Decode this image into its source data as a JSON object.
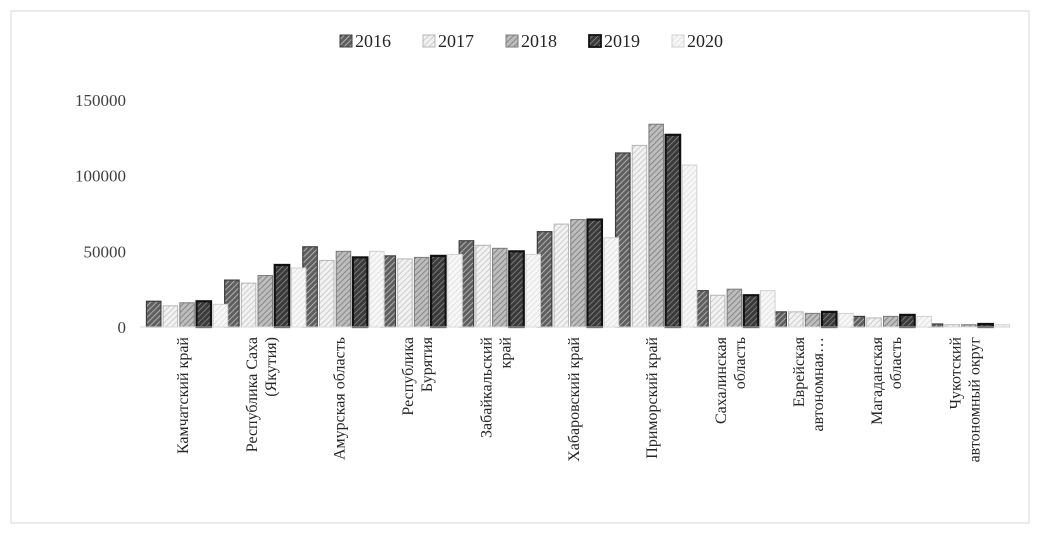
{
  "chart_data": {
    "type": "bar",
    "title": "",
    "xlabel": "",
    "ylabel": "",
    "ylim": [
      0,
      150000
    ],
    "yticks": [
      0,
      50000,
      100000,
      150000
    ],
    "grid": false,
    "legend_position": "top-center",
    "categories": [
      [
        "Камчатский край"
      ],
      [
        "Республика Саха",
        "(Якутия)"
      ],
      [
        "Амурская  область"
      ],
      [
        "Республика",
        "Бурятия"
      ],
      [
        "Забайкальский",
        "край"
      ],
      [
        "Хабаровский край"
      ],
      [
        "Приморский край"
      ],
      [
        "Сахалинская",
        "область"
      ],
      [
        "Еврейская",
        "автономная…"
      ],
      [
        "Магаданская",
        "область"
      ],
      [
        "Чукотский",
        "автономный округ"
      ]
    ],
    "series": [
      {
        "name": "2016",
        "color": "#7f7f7f",
        "values": [
          17000,
          31000,
          53000,
          47000,
          57000,
          63000,
          115000,
          24000,
          10000,
          7000,
          2000
        ]
      },
      {
        "name": "2017",
        "color": "#cfcfcf",
        "values": [
          14000,
          29000,
          44000,
          45000,
          54000,
          68000,
          120000,
          21000,
          10000,
          6000,
          1500
        ]
      },
      {
        "name": "2018",
        "color": "#a6a6a6",
        "values": [
          16000,
          34000,
          50000,
          46000,
          52000,
          71000,
          134000,
          25000,
          9000,
          7000,
          1500
        ]
      },
      {
        "name": "2019",
        "color": "#262626",
        "values": [
          17000,
          41000,
          46000,
          47000,
          50000,
          71000,
          127000,
          21000,
          10000,
          8000,
          2000
        ]
      },
      {
        "name": "2020",
        "color": "#e8e8e8",
        "values": [
          15000,
          39000,
          50000,
          48000,
          48000,
          59000,
          107000,
          24000,
          9000,
          7000,
          1500
        ]
      }
    ]
  }
}
